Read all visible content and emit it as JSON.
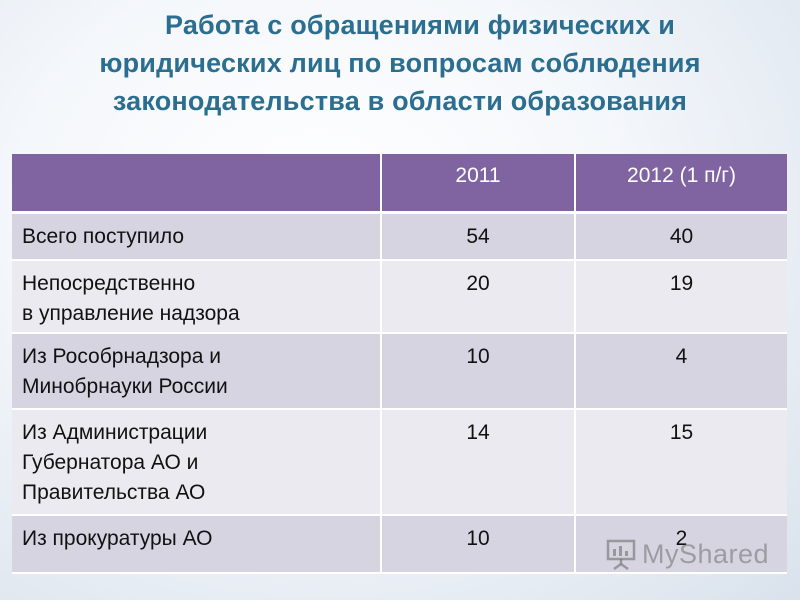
{
  "slide": {
    "title_lines": [
      "Работа с обращениями физических и",
      "юридических лиц по вопросам соблюдения",
      "законодательства в области образования"
    ]
  },
  "table": {
    "headers": [
      "",
      "2011",
      "2012 (1 п/г)"
    ],
    "rows": [
      {
        "label_lines": [
          "Всего поступило"
        ],
        "v2011": "54",
        "v2012": "40"
      },
      {
        "label_lines": [
          "Непосредственно",
          "в управление надзора"
        ],
        "v2011": "20",
        "v2012": "19"
      },
      {
        "label_lines": [
          "Из Рособрнадзора и",
          "Минобрнауки России"
        ],
        "v2011": "10",
        "v2012": "4"
      },
      {
        "label_lines": [
          "Из Администрации",
          "Губернатора АО и",
          "Правительства АО"
        ],
        "v2011": "14",
        "v2012": "15"
      },
      {
        "label_lines": [
          "Из прокуратуры АО"
        ],
        "v2011": "10",
        "v2012": "2"
      }
    ]
  },
  "watermark": {
    "text": "MyShared",
    "icon": "presentation-board-icon"
  }
}
